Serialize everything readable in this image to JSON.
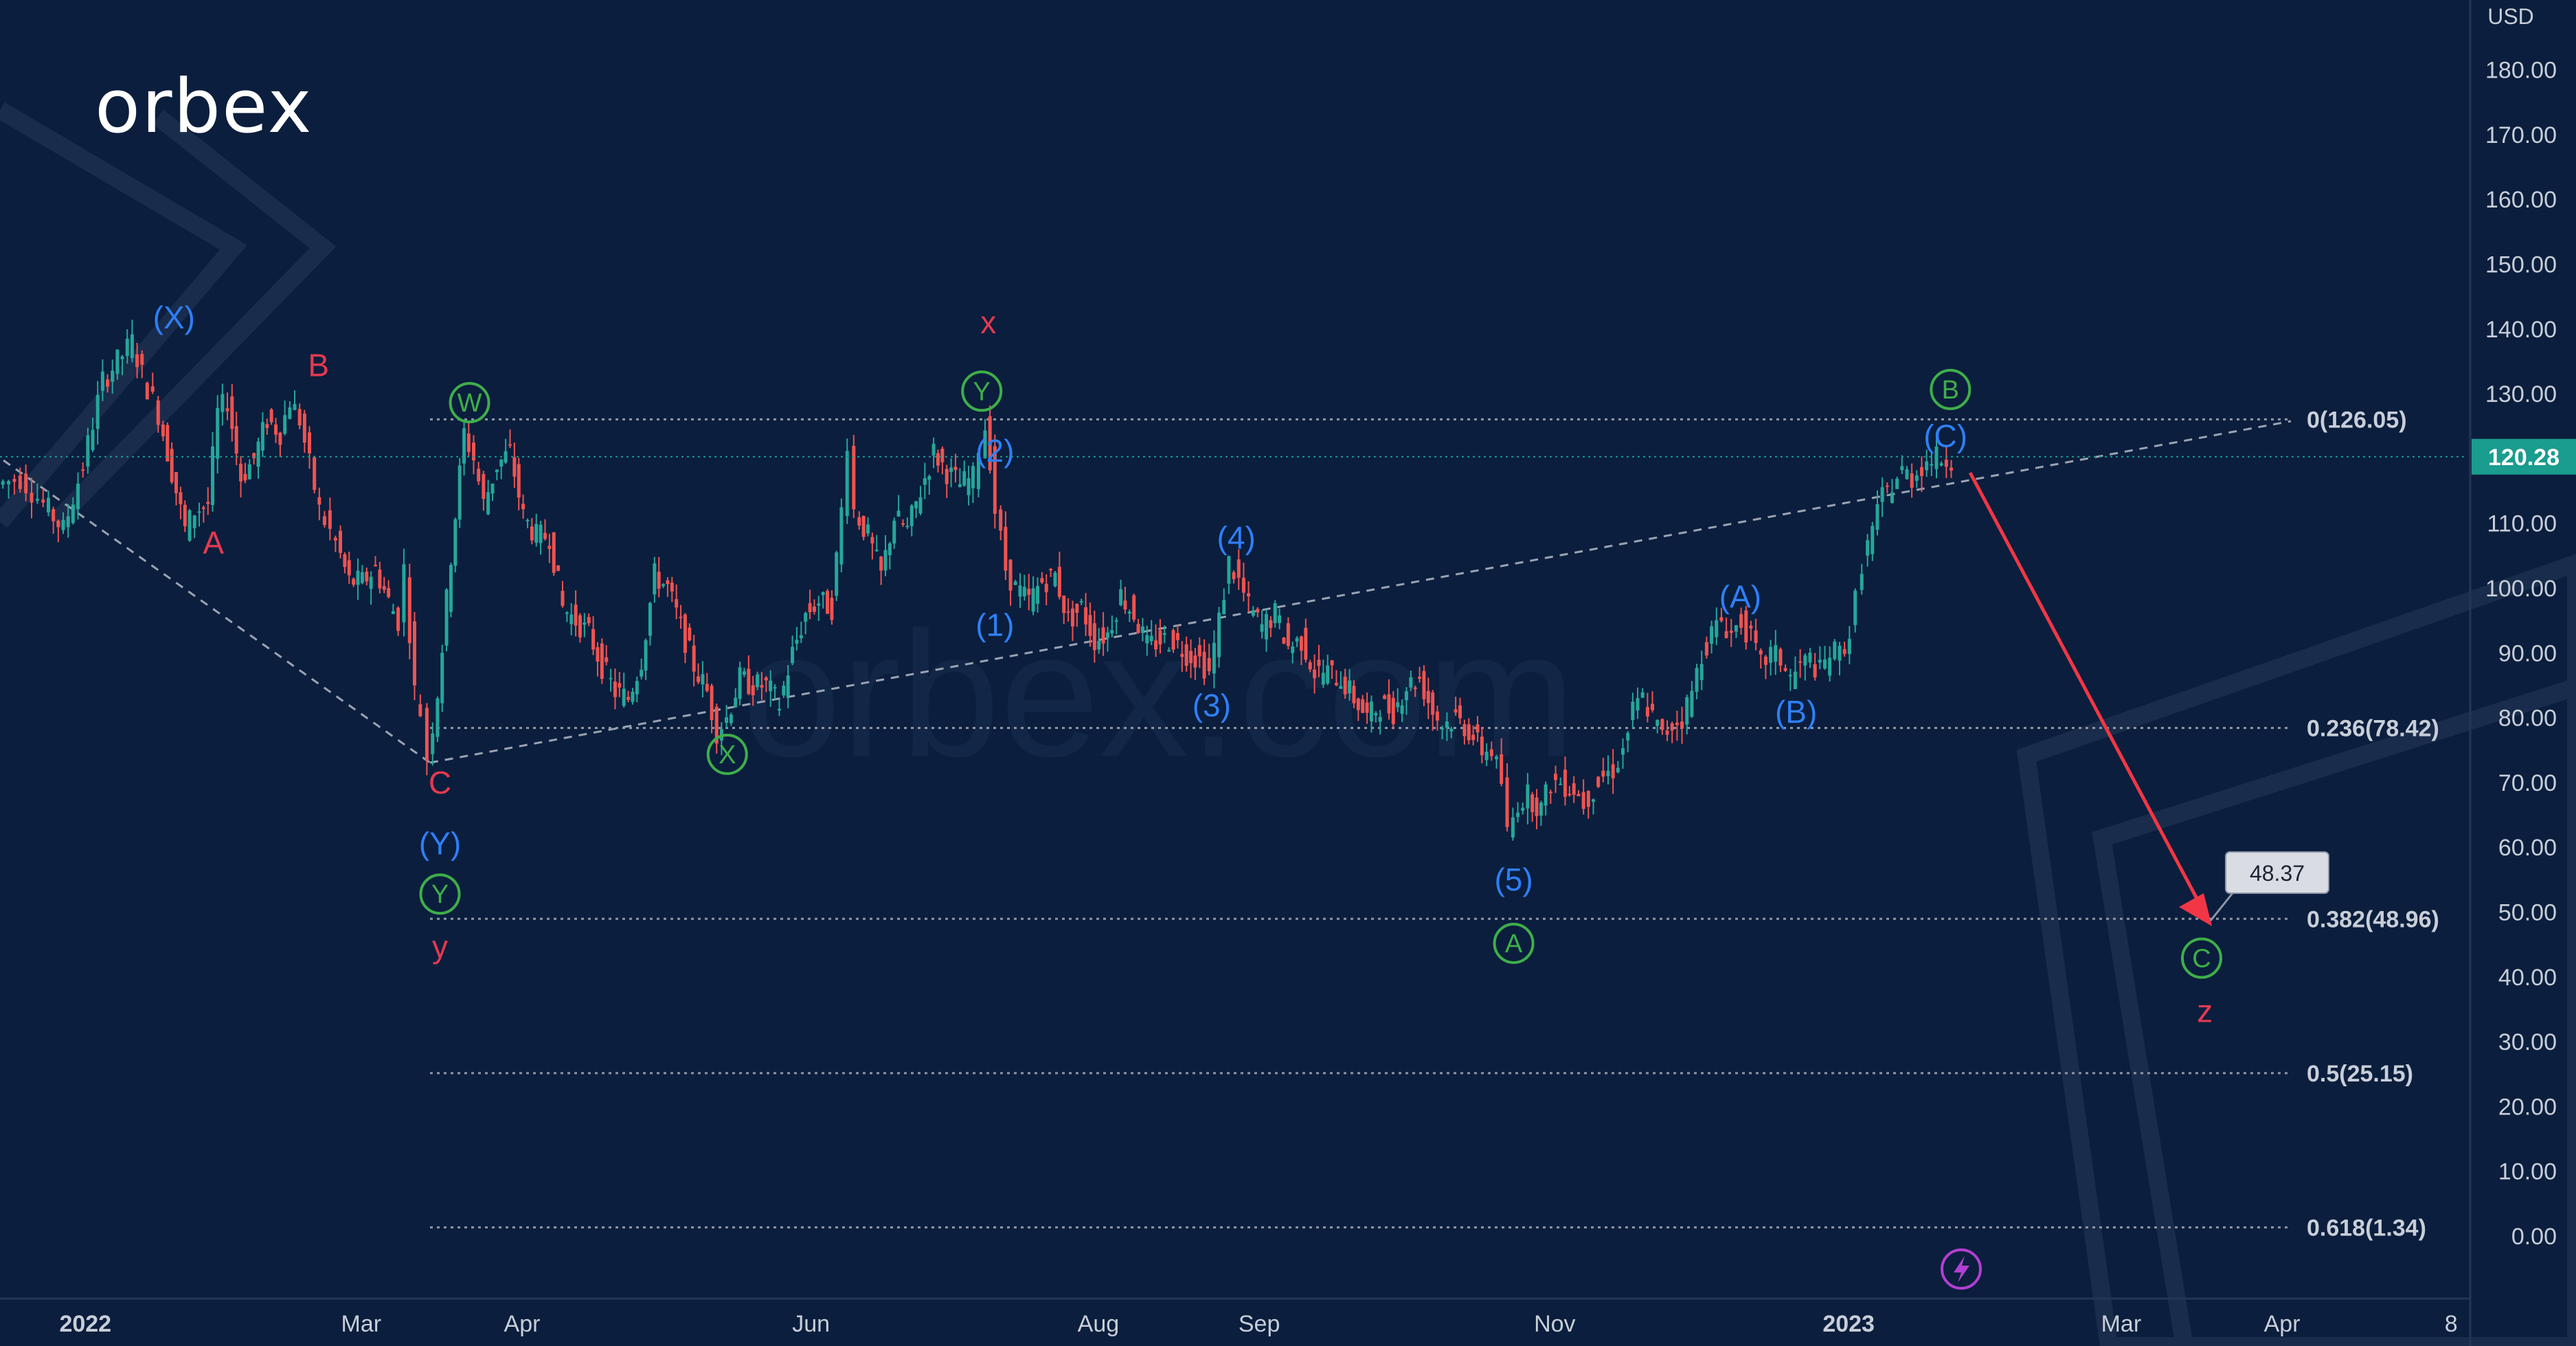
{
  "brand": {
    "logo_text": "orbex",
    "watermark": "orbex.com"
  },
  "colors": {
    "background": "#0b1e3d",
    "text": "#c8ced8",
    "candle_up": "#26a69a",
    "candle_down": "#ef5350",
    "label_red": "#e53950",
    "label_blue": "#2f7ff6",
    "label_green": "#3fae4a",
    "projection_arrow": "#f23645",
    "price_tag": "#1a9c8f",
    "fib_line": "#8f97a6",
    "trend_line": "#9aa3b2",
    "event_icon": "#b23fd1"
  },
  "price_axis": {
    "currency": "USD",
    "current_price": "120.28"
  },
  "chart_data": {
    "type": "candlestick",
    "title": "",
    "xlabel": "",
    "ylabel": "USD",
    "ylim": [
      -5,
      190
    ],
    "grid": false,
    "y_ticks": [
      "0.00",
      "10.00",
      "20.00",
      "30.00",
      "40.00",
      "50.00",
      "60.00",
      "70.00",
      "80.00",
      "90.00",
      "100.00",
      "110.00",
      "120.00",
      "130.00",
      "140.00",
      "150.00",
      "160.00",
      "170.00",
      "180.00"
    ],
    "x_ticks": [
      "2022",
      "Mar",
      "Apr",
      "Jun",
      "Aug",
      "Sep",
      "Nov",
      "2023",
      "Mar",
      "Apr",
      "8"
    ],
    "price_path": [
      [
        0,
        116
      ],
      [
        14,
        117
      ],
      [
        28,
        113
      ],
      [
        40,
        109
      ],
      [
        52,
        119
      ],
      [
        64,
        132
      ],
      [
        76,
        136
      ],
      [
        82,
        138
      ],
      [
        88,
        133
      ],
      [
        98,
        127
      ],
      [
        106,
        118
      ],
      [
        114,
        109
      ],
      [
        120,
        112
      ],
      [
        128,
        113
      ],
      [
        134,
        127
      ],
      [
        140,
        129
      ],
      [
        148,
        117
      ],
      [
        156,
        120
      ],
      [
        164,
        126
      ],
      [
        172,
        124
      ],
      [
        178,
        129
      ],
      [
        184,
        126
      ],
      [
        190,
        119
      ],
      [
        196,
        112
      ],
      [
        206,
        107
      ],
      [
        214,
        101
      ],
      [
        222,
        101
      ],
      [
        230,
        103
      ],
      [
        238,
        98
      ],
      [
        244,
        95
      ],
      [
        248,
        103
      ],
      [
        254,
        84
      ],
      [
        258,
        81
      ],
      [
        262,
        74
      ],
      [
        268,
        84
      ],
      [
        276,
        105
      ],
      [
        284,
        124
      ],
      [
        290,
        120
      ],
      [
        296,
        113
      ],
      [
        304,
        119
      ],
      [
        312,
        121
      ],
      [
        320,
        111
      ],
      [
        328,
        108
      ],
      [
        336,
        108
      ],
      [
        344,
        97
      ],
      [
        352,
        95
      ],
      [
        360,
        93
      ],
      [
        368,
        88
      ],
      [
        376,
        84
      ],
      [
        384,
        83
      ],
      [
        392,
        89
      ],
      [
        400,
        102
      ],
      [
        408,
        100
      ],
      [
        416,
        94
      ],
      [
        424,
        88
      ],
      [
        432,
        84
      ],
      [
        438,
        78
      ],
      [
        444,
        80
      ],
      [
        452,
        86
      ],
      [
        460,
        85
      ],
      [
        468,
        85
      ],
      [
        476,
        82
      ],
      [
        484,
        90
      ],
      [
        492,
        96
      ],
      [
        500,
        98
      ],
      [
        508,
        97
      ],
      [
        514,
        112
      ],
      [
        518,
        123
      ],
      [
        522,
        112
      ],
      [
        530,
        108
      ],
      [
        538,
        102
      ],
      [
        546,
        111
      ],
      [
        554,
        109
      ],
      [
        562,
        115
      ],
      [
        570,
        121
      ],
      [
        578,
        118
      ],
      [
        586,
        116
      ],
      [
        594,
        117
      ],
      [
        598,
        122
      ],
      [
        602,
        125
      ],
      [
        604,
        120
      ],
      [
        608,
        112
      ],
      [
        614,
        103
      ],
      [
        620,
        100
      ],
      [
        628,
        98
      ],
      [
        636,
        101
      ],
      [
        644,
        102
      ],
      [
        652,
        95
      ],
      [
        660,
        97
      ],
      [
        668,
        92
      ],
      [
        676,
        93
      ],
      [
        684,
        99
      ],
      [
        692,
        96
      ],
      [
        700,
        91
      ],
      [
        708,
        92
      ],
      [
        716,
        92
      ],
      [
        724,
        90
      ],
      [
        732,
        89
      ],
      [
        738,
        87
      ],
      [
        744,
        95
      ],
      [
        750,
        104
      ],
      [
        756,
        101
      ],
      [
        762,
        97
      ],
      [
        770,
        94
      ],
      [
        778,
        96
      ],
      [
        786,
        91
      ],
      [
        794,
        92
      ],
      [
        802,
        87
      ],
      [
        810,
        87
      ],
      [
        818,
        86
      ],
      [
        826,
        83
      ],
      [
        834,
        80
      ],
      [
        842,
        82
      ],
      [
        850,
        81
      ],
      [
        858,
        85
      ],
      [
        866,
        86
      ],
      [
        874,
        81
      ],
      [
        880,
        79
      ],
      [
        888,
        80
      ],
      [
        896,
        78
      ],
      [
        904,
        75
      ],
      [
        910,
        75
      ],
      [
        916,
        70
      ],
      [
        920,
        62
      ],
      [
        926,
        67
      ],
      [
        932,
        68
      ],
      [
        940,
        66
      ],
      [
        946,
        70
      ],
      [
        952,
        70
      ],
      [
        960,
        69
      ],
      [
        966,
        67
      ],
      [
        972,
        69
      ],
      [
        978,
        71
      ],
      [
        984,
        72
      ],
      [
        990,
        75
      ],
      [
        996,
        81
      ],
      [
        1002,
        83
      ],
      [
        1008,
        80
      ],
      [
        1014,
        77
      ],
      [
        1020,
        79
      ],
      [
        1026,
        80
      ],
      [
        1032,
        84
      ],
      [
        1038,
        90
      ],
      [
        1044,
        93
      ],
      [
        1050,
        95
      ],
      [
        1056,
        93
      ],
      [
        1062,
        95
      ],
      [
        1068,
        92
      ],
      [
        1074,
        88
      ],
      [
        1080,
        90
      ],
      [
        1086,
        89
      ],
      [
        1092,
        86
      ],
      [
        1098,
        88
      ],
      [
        1104,
        89
      ],
      [
        1110,
        87
      ],
      [
        1116,
        90
      ],
      [
        1122,
        90
      ],
      [
        1128,
        93
      ],
      [
        1132,
        98
      ],
      [
        1136,
        104
      ],
      [
        1142,
        109
      ],
      [
        1148,
        114
      ],
      [
        1154,
        116
      ],
      [
        1160,
        118
      ],
      [
        1166,
        117
      ],
      [
        1172,
        119
      ],
      [
        1178,
        120
      ],
      [
        1184,
        120
      ],
      [
        1190,
        120
      ]
    ],
    "fibonacci": [
      {
        "ratio": "0",
        "value": 126.05,
        "label": "0(126.05)"
      },
      {
        "ratio": "0.236",
        "value": 78.42,
        "label": "0.236(78.42)"
      },
      {
        "ratio": "0.382",
        "value": 48.96,
        "label": "0.382(48.96)"
      },
      {
        "ratio": "0.5",
        "value": 25.15,
        "label": "0.5(25.15)"
      },
      {
        "ratio": "0.618",
        "value": 1.34,
        "label": "0.618(1.34)"
      }
    ],
    "target_label": "48.37",
    "wave_labels": [
      {
        "text": "(X)",
        "color": "blue",
        "circled": false
      },
      {
        "text": "B",
        "color": "red",
        "circled": false
      },
      {
        "text": "A",
        "color": "red",
        "circled": false
      },
      {
        "text": "W",
        "color": "green",
        "circled": true
      },
      {
        "text": "C",
        "color": "red",
        "circled": false
      },
      {
        "text": "(Y)",
        "color": "blue",
        "circled": false
      },
      {
        "text": "Y",
        "color": "green",
        "circled": true
      },
      {
        "text": "y",
        "color": "red",
        "circled": false
      },
      {
        "text": "X",
        "color": "green",
        "circled": true
      },
      {
        "text": "x",
        "color": "red",
        "circled": false
      },
      {
        "text": "Y",
        "color": "green",
        "circled": true
      },
      {
        "text": "(2)",
        "color": "blue",
        "circled": false
      },
      {
        "text": "(1)",
        "color": "blue",
        "circled": false
      },
      {
        "text": "(4)",
        "color": "blue",
        "circled": false
      },
      {
        "text": "(3)",
        "color": "blue",
        "circled": false
      },
      {
        "text": "(5)",
        "color": "blue",
        "circled": false
      },
      {
        "text": "A",
        "color": "green",
        "circled": true
      },
      {
        "text": "(A)",
        "color": "blue",
        "circled": false
      },
      {
        "text": "(B)",
        "color": "blue",
        "circled": false
      },
      {
        "text": "B",
        "color": "green",
        "circled": true
      },
      {
        "text": "(C)",
        "color": "blue",
        "circled": false
      },
      {
        "text": "C",
        "color": "green",
        "circled": true
      },
      {
        "text": "z",
        "color": "red",
        "circled": false
      }
    ]
  }
}
